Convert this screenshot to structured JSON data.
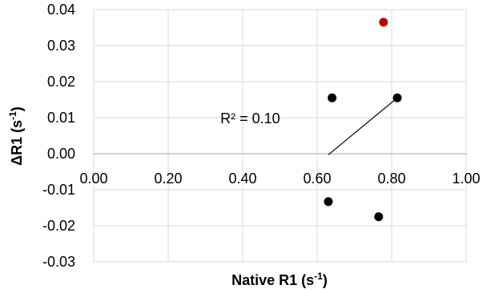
{
  "chart_data": {
    "type": "scatter",
    "xlabel": "Native R1 (s",
    "xlabel_sup": "-1",
    "xlabel_end": ")",
    "ylabel": "ΔR1 (s",
    "ylabel_sup": "-1",
    "ylabel_end": ")",
    "xlim": [
      0,
      1
    ],
    "ylim": [
      -0.03,
      0.04
    ],
    "x_ticks": [
      0,
      0.2,
      0.4,
      0.6,
      0.8,
      1.0
    ],
    "x_tick_labels": [
      "0.00",
      "0.20",
      "0.40",
      "0.60",
      "0.80",
      "1.00"
    ],
    "y_ticks": [
      -0.03,
      -0.02,
      -0.01,
      0,
      0.01,
      0.02,
      0.03,
      0.04
    ],
    "y_tick_labels": [
      "-0.03",
      "-0.02",
      "-0.01",
      "0.00",
      "0.01",
      "0.02",
      "0.03",
      "0.04"
    ],
    "grid": true,
    "points": [
      {
        "x": 0.64,
        "y": 0.0155,
        "color": "#000000"
      },
      {
        "x": 0.815,
        "y": 0.0155,
        "color": "#000000"
      },
      {
        "x": 0.63,
        "y": -0.0133,
        "color": "#000000"
      },
      {
        "x": 0.765,
        "y": -0.0175,
        "color": "#000000"
      },
      {
        "x": 0.778,
        "y": 0.0365,
        "color": "#c00000"
      }
    ],
    "trendline": {
      "x1": 0.63,
      "y1": -0.0003,
      "x2": 0.815,
      "y2": 0.0155
    },
    "annotation": {
      "text": "R² = 0.10",
      "x": 0.34,
      "y": 0.0085
    }
  }
}
